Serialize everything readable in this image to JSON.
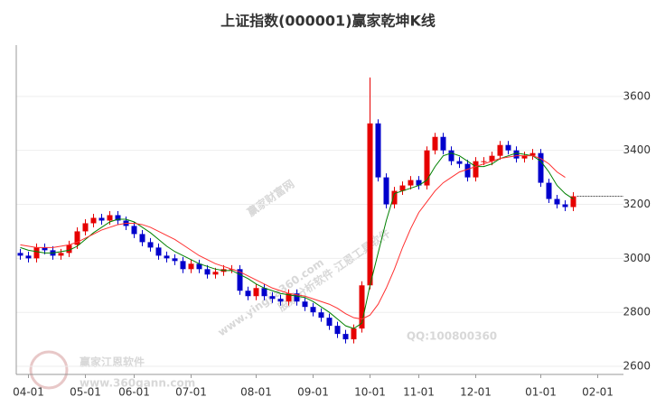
{
  "chart_data": {
    "type": "candlestick",
    "title": "上证指数(000001)赢家乾坤K线",
    "categories": [
      null,
      "04-01",
      null,
      null,
      null,
      null,
      null,
      null,
      "05-01",
      null,
      null,
      null,
      null,
      null,
      "06-01",
      null,
      null,
      null,
      null,
      null,
      null,
      "07-01",
      null,
      null,
      null,
      null,
      null,
      null,
      null,
      "08-01",
      null,
      null,
      null,
      null,
      null,
      null,
      "09-01",
      null,
      null,
      null,
      null,
      null,
      null,
      "10-01",
      null,
      null,
      null,
      null,
      null,
      "11-01",
      null,
      null,
      null,
      null,
      null,
      null,
      "12-01",
      null,
      null,
      null,
      null,
      null,
      null,
      null,
      "01-01",
      null,
      null,
      null,
      null,
      null,
      null,
      "02-01"
    ],
    "open": [
      3020,
      3010,
      3000,
      3040,
      3030,
      3010,
      3020,
      3050,
      3100,
      3130,
      3150,
      3140,
      3160,
      3140,
      3120,
      3090,
      3060,
      3040,
      3010,
      3000,
      2990,
      2960,
      2980,
      2960,
      2940,
      2950,
      2960,
      2960,
      2880,
      2860,
      2890,
      2860,
      2850,
      2840,
      2870,
      2840,
      2820,
      2800,
      2780,
      2750,
      2720,
      2700,
      2740,
      2900,
      3500,
      3300,
      3200,
      3250,
      3270,
      3290,
      3270,
      3400,
      3450,
      3400,
      3360,
      3350,
      3300,
      3360,
      3360,
      3380,
      3420,
      3400,
      3370,
      3380,
      3390,
      3280,
      3220,
      3200,
      3190,
      null,
      null,
      null
    ],
    "high": [
      3035,
      3025,
      3055,
      3055,
      3045,
      3035,
      3065,
      3115,
      3145,
      3165,
      3165,
      3175,
      3175,
      3155,
      3135,
      3105,
      3075,
      3055,
      3025,
      3015,
      3005,
      2995,
      2995,
      2975,
      2965,
      2975,
      2975,
      2975,
      2895,
      2905,
      2905,
      2875,
      2865,
      2885,
      2885,
      2855,
      2835,
      2815,
      2795,
      2765,
      2735,
      2755,
      2915,
      3670,
      3515,
      3315,
      3265,
      3285,
      3305,
      3305,
      3415,
      3465,
      3465,
      3415,
      3375,
      3365,
      3375,
      3375,
      3395,
      3435,
      3435,
      3415,
      3395,
      3405,
      3405,
      3295,
      3235,
      3215,
      3245,
      null,
      null,
      null
    ],
    "low": [
      2995,
      2985,
      2985,
      3015,
      2995,
      2995,
      3005,
      3035,
      3085,
      3115,
      3125,
      3125,
      3125,
      3105,
      3075,
      3045,
      3025,
      2995,
      2985,
      2975,
      2945,
      2945,
      2945,
      2925,
      2925,
      2935,
      2945,
      2865,
      2845,
      2845,
      2845,
      2835,
      2825,
      2825,
      2825,
      2805,
      2785,
      2765,
      2735,
      2705,
      2685,
      2685,
      2725,
      2885,
      3285,
      3185,
      3185,
      3235,
      3255,
      3255,
      3255,
      3385,
      3385,
      3345,
      3335,
      3285,
      3285,
      3345,
      3345,
      3365,
      3385,
      3355,
      3355,
      3365,
      3265,
      3205,
      3185,
      3175,
      3175,
      null,
      null,
      null
    ],
    "close": [
      3010,
      3000,
      3040,
      3030,
      3010,
      3020,
      3050,
      3100,
      3130,
      3150,
      3140,
      3160,
      3140,
      3120,
      3090,
      3060,
      3040,
      3010,
      3000,
      2990,
      2960,
      2980,
      2960,
      2940,
      2950,
      2960,
      2960,
      2880,
      2860,
      2890,
      2860,
      2850,
      2840,
      2870,
      2840,
      2820,
      2800,
      2780,
      2750,
      2720,
      2700,
      2740,
      2900,
      3500,
      3300,
      3200,
      3250,
      3270,
      3290,
      3270,
      3400,
      3450,
      3400,
      3360,
      3350,
      3300,
      3360,
      3360,
      3380,
      3420,
      3400,
      3370,
      3380,
      3390,
      3280,
      3220,
      3200,
      3190,
      3230,
      null,
      null,
      null
    ],
    "up_color": "#e60000",
    "down_color": "#0000cc",
    "series": [
      {
        "color": "#008000",
        "values": [
          3040,
          3030,
          3025,
          3020,
          3020,
          3025,
          3030,
          3045,
          3070,
          3095,
          3115,
          3135,
          3145,
          3145,
          3135,
          3115,
          3095,
          3070,
          3045,
          3025,
          3010,
          2995,
          2980,
          2970,
          2960,
          2955,
          2955,
          2940,
          2925,
          2905,
          2890,
          2880,
          2870,
          2865,
          2860,
          2855,
          2840,
          2820,
          2800,
          2775,
          2750,
          2740,
          2760,
          2900,
          3020,
          3140,
          3240,
          3250,
          3260,
          3270,
          3290,
          3340,
          3380,
          3390,
          3380,
          3360,
          3340,
          3340,
          3350,
          3370,
          3380,
          3390,
          3385,
          3380,
          3360,
          3320,
          3270,
          3240,
          3220,
          null,
          null,
          null
        ]
      },
      {
        "color": "#ff3030",
        "values": [
          3050,
          3045,
          3040,
          3040,
          3040,
          3045,
          3050,
          3060,
          3075,
          3090,
          3105,
          3115,
          3125,
          3130,
          3130,
          3125,
          3115,
          3100,
          3085,
          3070,
          3050,
          3030,
          3010,
          2995,
          2980,
          2970,
          2960,
          2950,
          2935,
          2920,
          2905,
          2890,
          2880,
          2870,
          2865,
          2860,
          2850,
          2840,
          2830,
          2815,
          2795,
          2780,
          2775,
          2790,
          2830,
          2890,
          2960,
          3040,
          3110,
          3170,
          3210,
          3250,
          3280,
          3300,
          3320,
          3330,
          3340,
          3350,
          3360,
          3370,
          3375,
          3380,
          3380,
          3380,
          3370,
          3350,
          3320,
          3300,
          null,
          null,
          null,
          null
        ]
      }
    ],
    "ylim": [
      2570,
      3790
    ],
    "yticks": [
      2600,
      2800,
      3000,
      3200,
      3400,
      3600
    ],
    "grid": true,
    "watermarks": [
      "赢家财富网",
      "股票分析软件 江恩工具软件",
      "www.yingjia360.com",
      "QQ:100800360",
      "赢家江恩软件",
      "www.360gann.com"
    ]
  }
}
